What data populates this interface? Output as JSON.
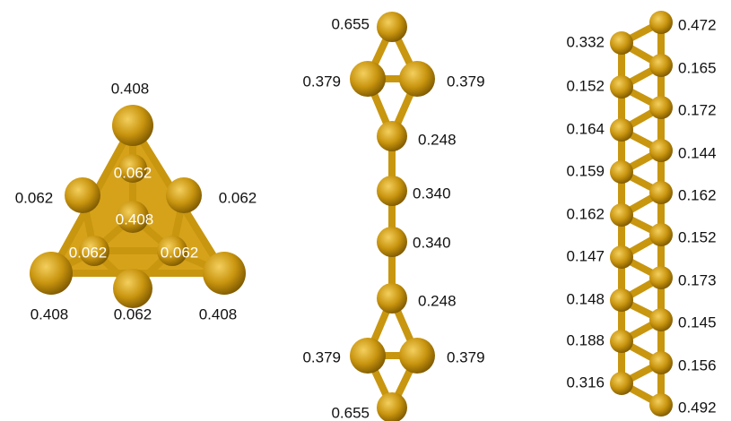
{
  "structures": [
    {
      "labels": [
        "0.408",
        "0.062",
        "0.062",
        "0.062",
        "0.408",
        "0.062",
        "0.062",
        "0.408",
        "0.062",
        "0.408"
      ]
    },
    {
      "labels": [
        "0.655",
        "0.379",
        "0.379",
        "0.248",
        "0.340",
        "0.340",
        "0.248",
        "0.379",
        "0.379",
        "0.655"
      ]
    },
    {
      "labels": [
        "0.332",
        "0.152",
        "0.164",
        "0.159",
        "0.162",
        "0.147",
        "0.148",
        "0.188",
        "0.316",
        "0.472",
        "0.165",
        "0.172",
        "0.144",
        "0.162",
        "0.152",
        "0.173",
        "0.145",
        "0.156",
        "0.492"
      ]
    }
  ]
}
